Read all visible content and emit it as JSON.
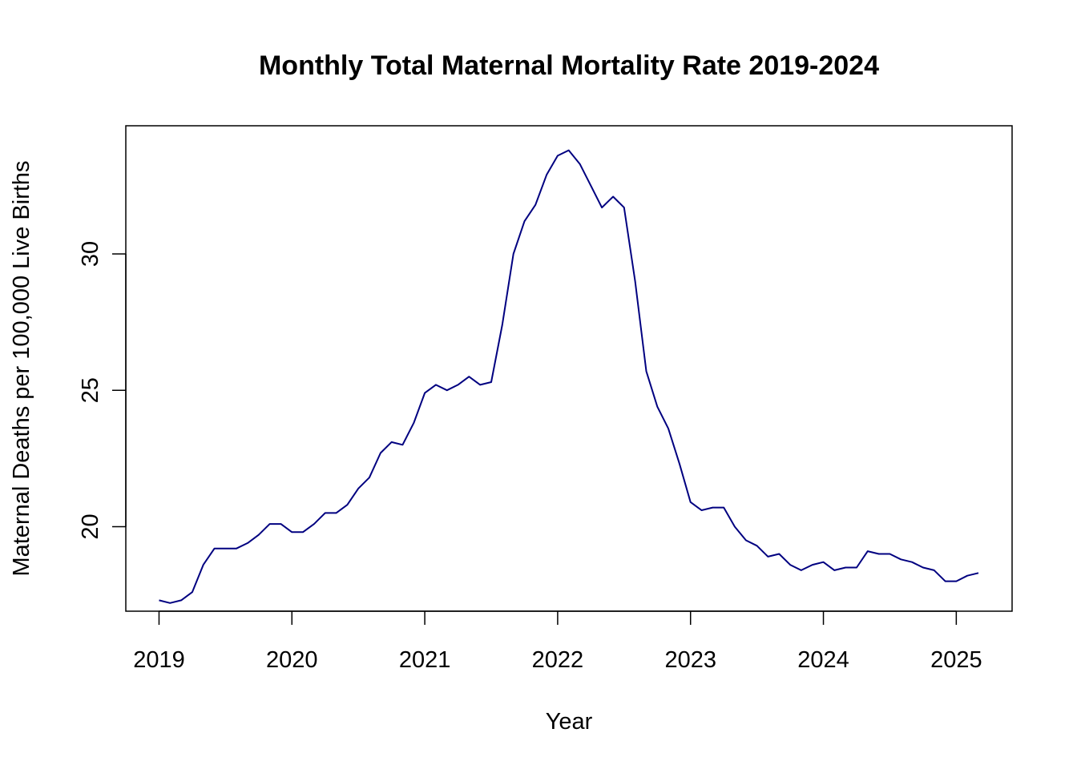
{
  "chart_data": {
    "type": "line",
    "title": "Monthly Total Maternal Mortality Rate 2019-2024",
    "xlabel": "Year",
    "ylabel": "Maternal Deaths per 100,000 Live Births",
    "x_ticks": [
      2019,
      2020,
      2021,
      2022,
      2023,
      2024,
      2025
    ],
    "y_ticks": [
      20,
      25,
      30
    ],
    "xlim": [
      2018.75,
      2025.42
    ],
    "ylim": [
      16.9,
      34.7
    ],
    "grid": false,
    "legend": "none",
    "series": [
      {
        "color": "#000080",
        "x": [
          2019.0,
          2019.083,
          2019.167,
          2019.25,
          2019.333,
          2019.417,
          2019.5,
          2019.583,
          2019.667,
          2019.75,
          2019.833,
          2019.917,
          2020.0,
          2020.083,
          2020.167,
          2020.25,
          2020.333,
          2020.417,
          2020.5,
          2020.583,
          2020.667,
          2020.75,
          2020.833,
          2020.917,
          2021.0,
          2021.083,
          2021.167,
          2021.25,
          2021.333,
          2021.417,
          2021.5,
          2021.583,
          2021.667,
          2021.75,
          2021.833,
          2021.917,
          2022.0,
          2022.083,
          2022.167,
          2022.25,
          2022.333,
          2022.417,
          2022.5,
          2022.583,
          2022.667,
          2022.75,
          2022.833,
          2022.917,
          2023.0,
          2023.083,
          2023.167,
          2023.25,
          2023.333,
          2023.417,
          2023.5,
          2023.583,
          2023.667,
          2023.75,
          2023.833,
          2023.917,
          2024.0,
          2024.083,
          2024.167,
          2024.25,
          2024.333,
          2024.417,
          2024.5,
          2024.583,
          2024.667,
          2024.75,
          2024.833,
          2024.917,
          2025.0,
          2025.083,
          2025.167
        ],
        "values": [
          17.3,
          17.2,
          17.3,
          17.6,
          18.6,
          19.2,
          19.2,
          19.2,
          19.4,
          19.7,
          20.1,
          20.1,
          19.8,
          19.8,
          20.1,
          20.5,
          20.5,
          20.8,
          21.4,
          21.8,
          22.7,
          23.1,
          23.0,
          23.8,
          24.9,
          25.2,
          25.0,
          25.2,
          25.5,
          25.2,
          25.3,
          27.4,
          30.0,
          31.2,
          31.8,
          32.9,
          33.6,
          33.8,
          33.3,
          32.5,
          31.7,
          32.1,
          31.7,
          29.0,
          25.7,
          24.4,
          23.6,
          22.3,
          20.9,
          20.6,
          20.7,
          20.7,
          20.0,
          19.5,
          19.3,
          18.9,
          19.0,
          18.6,
          18.4,
          18.6,
          18.7,
          18.4,
          18.5,
          18.5,
          19.1,
          19.0,
          19.0,
          18.8,
          18.7,
          18.5,
          18.4,
          18.0,
          18.0,
          18.2,
          18.3
        ]
      }
    ]
  }
}
